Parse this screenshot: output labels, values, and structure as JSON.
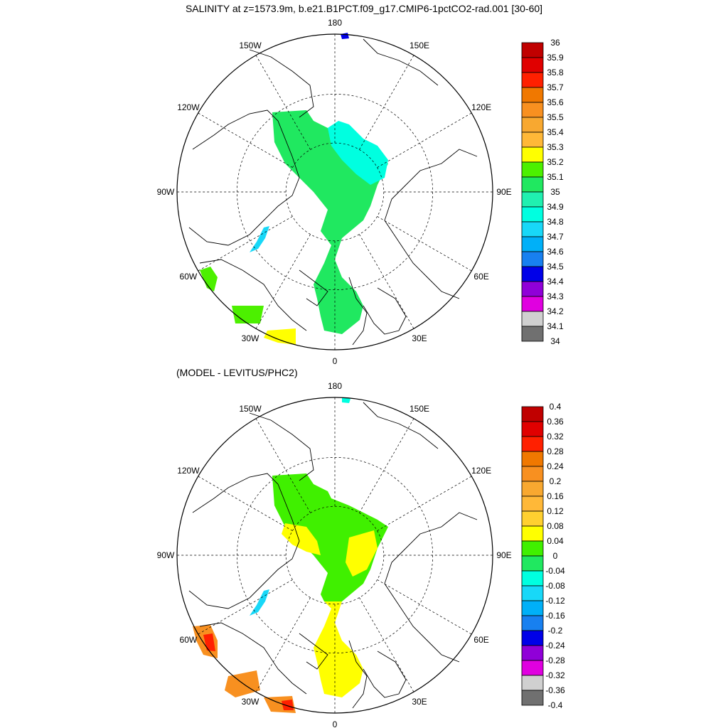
{
  "figure": {
    "top_title": "SALINITY at z=1573.9m, b.e21.B1PCT.f09_g17.CMIP6-1pctCO2-rad.001 [30-60]",
    "bottom_title": "(MODEL - LEVITUS/PHC2)"
  },
  "chart_data": [
    {
      "type": "heatmap",
      "projection": "north-polar-stereographic",
      "title": "SALINITY at z=1573.9m, b.e21.B1PCT.f09_g17.CMIP6-1pctCO2-rad.001 [30-60]",
      "longitude_labels": [
        "180",
        "150E",
        "120E",
        "90E",
        "60E",
        "30E",
        "0",
        "30W",
        "60W",
        "90W",
        "120W",
        "150W"
      ],
      "latitude_circles": [
        60,
        70,
        80
      ],
      "grid": true,
      "colorbar": {
        "placement": "right",
        "levels": [
          36,
          35.9,
          35.8,
          35.7,
          35.6,
          35.5,
          35.4,
          35.3,
          35.2,
          35.1,
          35,
          34.9,
          34.8,
          34.7,
          34.6,
          34.5,
          34.4,
          34.3,
          34.2,
          34.1,
          34
        ],
        "level_labels": [
          "36",
          "35.9",
          "35.8",
          "35.7",
          "35.6",
          "35.5",
          "35.4",
          "35.3",
          "35.2",
          "35.1",
          "35",
          "34.9",
          "34.8",
          "34.7",
          "34.6",
          "34.5",
          "34.4",
          "34.3",
          "34.2",
          "34.1",
          "34"
        ],
        "colors": [
          "#c00000",
          "#e00000",
          "#ff2000",
          "#f07800",
          "#f89020",
          "#f8a830",
          "#ffb838",
          "#ffff00",
          "#4cf000",
          "#20e860",
          "#20f0b0",
          "#00ffe0",
          "#18d8f8",
          "#00b0f8",
          "#1880f0",
          "#0000e8",
          "#9000d8",
          "#e000e0",
          "#d0d0d0",
          "#707070"
        ]
      }
    },
    {
      "type": "heatmap",
      "projection": "north-polar-stereographic",
      "title": "(MODEL - LEVITUS/PHC2)",
      "longitude_labels": [
        "180",
        "150E",
        "120E",
        "90E",
        "60E",
        "30E",
        "0",
        "30W",
        "60W",
        "90W",
        "120W",
        "150W"
      ],
      "latitude_circles": [
        60,
        70,
        80
      ],
      "grid": true,
      "colorbar": {
        "placement": "right",
        "levels": [
          0.4,
          0.36,
          0.32,
          0.28,
          0.24,
          0.2,
          0.16,
          0.12,
          0.08,
          0.04,
          0,
          -0.04,
          -0.08,
          -0.12,
          -0.16,
          -0.2,
          -0.24,
          -0.28,
          -0.32,
          -0.36,
          -0.4
        ],
        "level_labels": [
          "0.4",
          "0.36",
          "0.32",
          "0.28",
          "0.24",
          "0.2",
          "0.16",
          "0.12",
          "0.08",
          "0.04",
          "0",
          "-0.04",
          "-0.08",
          "-0.12",
          "-0.16",
          "-0.2",
          "-0.24",
          "-0.28",
          "-0.32",
          "-0.36",
          "-0.4"
        ],
        "colors": [
          "#c00000",
          "#e00000",
          "#ff2000",
          "#f07800",
          "#f89020",
          "#f8a830",
          "#ffb838",
          "#ffd030",
          "#ffff00",
          "#40f000",
          "#20e860",
          "#00ffe0",
          "#18d8f8",
          "#00b0f8",
          "#1880f0",
          "#0000e8",
          "#9000d8",
          "#e000e0",
          "#d0d0d0",
          "#707070"
        ]
      }
    }
  ]
}
